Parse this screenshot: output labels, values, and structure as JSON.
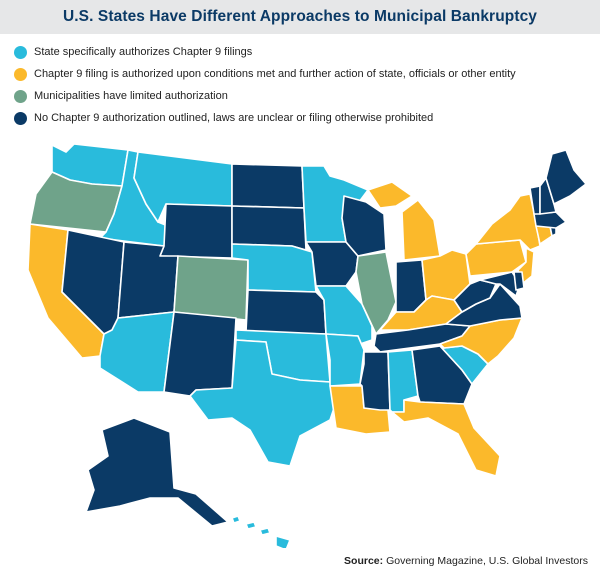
{
  "title": "U.S. States Have Different Approaches to Municipal Bankruptcy",
  "legend": [
    {
      "key": "authorized",
      "label": "State specifically authorizes Chapter 9 filings",
      "color": "#29bbdc"
    },
    {
      "key": "conditional",
      "label": "Chapter 9 filing is authorized upon conditions met and further action of state, officials or other entity",
      "color": "#fbb92b"
    },
    {
      "key": "limited",
      "label": "Municipalities have limited authorization",
      "color": "#6fa38a"
    },
    {
      "key": "none",
      "label": "No Chapter 9 authorization outlined, laws are unclear or filing otherwise prohibited",
      "color": "#0b3a66"
    }
  ],
  "source_label": "Source:",
  "source_text": "Governing Magazine, U.S. Global Investors",
  "states": {
    "WA": "authorized",
    "OR": "limited",
    "CA": "conditional",
    "ID": "authorized",
    "NV": "none",
    "MT": "authorized",
    "WY": "none",
    "UT": "none",
    "AZ": "authorized",
    "CO": "limited",
    "NM": "none",
    "ND": "none",
    "SD": "none",
    "NE": "authorized",
    "KS": "none",
    "OK": "authorized",
    "TX": "authorized",
    "MN": "authorized",
    "IA": "none",
    "MO": "authorized",
    "AR": "authorized",
    "LA": "conditional",
    "WI": "none",
    "IL": "limited",
    "MI": "conditional",
    "IN": "none",
    "OH": "conditional",
    "KY": "conditional",
    "TN": "none",
    "MS": "none",
    "AL": "authorized",
    "GA": "none",
    "FL": "conditional",
    "SC": "authorized",
    "NC": "conditional",
    "VA": "none",
    "WV": "none",
    "PA": "conditional",
    "NY": "conditional",
    "NJ": "conditional",
    "MD": "none",
    "DE": "none",
    "CT": "conditional",
    "RI": "none",
    "MA": "none",
    "VT": "none",
    "NH": "none",
    "ME": "none",
    "AK": "none",
    "HI": "authorized"
  }
}
